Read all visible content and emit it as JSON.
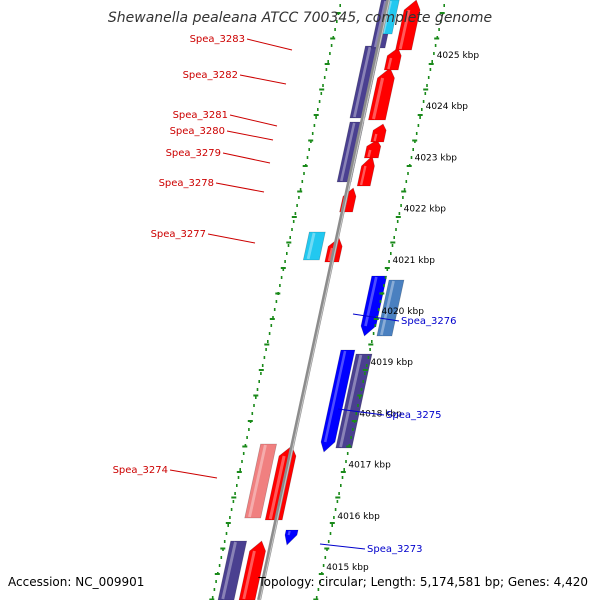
{
  "header": {
    "title": "Shewanella pealeana ATCC 700345, complete genome"
  },
  "footer": {
    "accession": "Accession: NC_009901",
    "summary": "Topology: circular; Length: 5,174,581 bp; Genes: 4,420"
  },
  "colors": {
    "backbone": "#8c8c8c",
    "tick": "#1a8a1a",
    "gene_red": "#ff0000",
    "gene_pink": "#f08080",
    "gene_navy": "#4a4090",
    "gene_blue": "#0000ff",
    "gene_cyan": "#22c8f0",
    "gene_steel": "#4a80c0",
    "label_red": "#cc0000",
    "label_blue": "#0000cc"
  },
  "chart_data": {
    "type": "diagram",
    "map_type": "linear genome map",
    "kbp_ticks": [
      "4015 kbp",
      "4016 kbp",
      "4017 kbp",
      "4018 kbp",
      "4019 kbp",
      "4020 kbp",
      "4021 kbp",
      "4022 kbp",
      "4023 kbp",
      "4024 kbp",
      "4025 kbp"
    ],
    "gene_labels": [
      {
        "name": "Spea_3283",
        "strand": "left"
      },
      {
        "name": "Spea_3282",
        "strand": "left"
      },
      {
        "name": "Spea_3281",
        "strand": "left"
      },
      {
        "name": "Spea_3280",
        "strand": "left"
      },
      {
        "name": "Spea_3279",
        "strand": "left"
      },
      {
        "name": "Spea_3278",
        "strand": "left"
      },
      {
        "name": "Spea_3277",
        "strand": "left"
      },
      {
        "name": "Spea_3274",
        "strand": "left"
      },
      {
        "name": "Spea_3276",
        "strand": "right"
      },
      {
        "name": "Spea_3275",
        "strand": "right"
      },
      {
        "name": "Spea_3273",
        "strand": "right"
      }
    ]
  }
}
